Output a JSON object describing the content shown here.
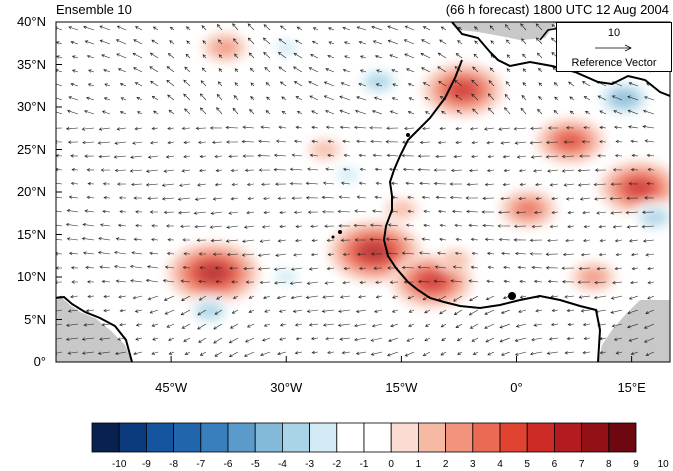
{
  "title_left": "Ensemble 10",
  "title_right": "(66 h forecast) 1800 UTC 12 Aug 2004",
  "reference_vector": {
    "value": "10",
    "label": "Reference Vector"
  },
  "lat_labels": [
    "40°N",
    "35°N",
    "30°N",
    "25°N",
    "20°N",
    "15°N",
    "10°N",
    "5°N",
    "0°"
  ],
  "lon_labels": [
    "45°W",
    "30°W",
    "15°W",
    "0°",
    "15°E"
  ],
  "colorbar": {
    "labels": [
      "-10",
      "-9",
      "-8",
      "-7",
      "-6",
      "-5",
      "-4",
      "-3",
      "-2",
      "-1",
      "0",
      "1",
      "2",
      "3",
      "4",
      "5",
      "6",
      "7",
      "8",
      "9",
      "10"
    ],
    "colors": [
      "#08214f",
      "#0b3a7d",
      "#1555a0",
      "#2166ac",
      "#3a7fbd",
      "#5a9bcc",
      "#83b9d9",
      "#a9d3e6",
      "#d2ebf4",
      "#ffffff",
      "#ffffff",
      "#fbdcd3",
      "#f6b9a3",
      "#f2937b",
      "#eb6a53",
      "#e0432f",
      "#cc2a25",
      "#b21b1f",
      "#921117",
      "#6d0710"
    ]
  },
  "map": {
    "land_color": "#c8c8c8",
    "coast_color": "#000000",
    "anomaly_blobs": [
      {
        "lon": -39.5,
        "lat": 10.5,
        "level": 7
      },
      {
        "lon": -18.5,
        "lat": 13,
        "level": 7
      },
      {
        "lon": -11,
        "lat": 9.5,
        "level": 6
      },
      {
        "lon": -7,
        "lat": 32,
        "level": 6
      },
      {
        "lon": 7,
        "lat": 26,
        "level": 5
      },
      {
        "lon": 16,
        "lat": 20.5,
        "level": 6
      },
      {
        "lon": 1.5,
        "lat": 18,
        "level": 4
      },
      {
        "lon": -15,
        "lat": 18,
        "level": 2
      },
      {
        "lon": -38,
        "lat": 37,
        "level": 3
      },
      {
        "lon": -25,
        "lat": 25,
        "level": 2
      },
      {
        "lon": 14,
        "lat": 31,
        "level": -4
      },
      {
        "lon": 18,
        "lat": 17,
        "level": -3
      },
      {
        "lon": -18,
        "lat": 33,
        "level": -3
      },
      {
        "lon": -30,
        "lat": 37,
        "level": -2
      },
      {
        "lon": -40,
        "lat": 6,
        "level": -3
      },
      {
        "lon": -30,
        "lat": 10,
        "level": -2
      },
      {
        "lon": -22,
        "lat": 22,
        "level": -2
      },
      {
        "lon": -8,
        "lat": 12,
        "level": 2
      },
      {
        "lon": 10,
        "lat": 10,
        "level": 3
      }
    ]
  }
}
